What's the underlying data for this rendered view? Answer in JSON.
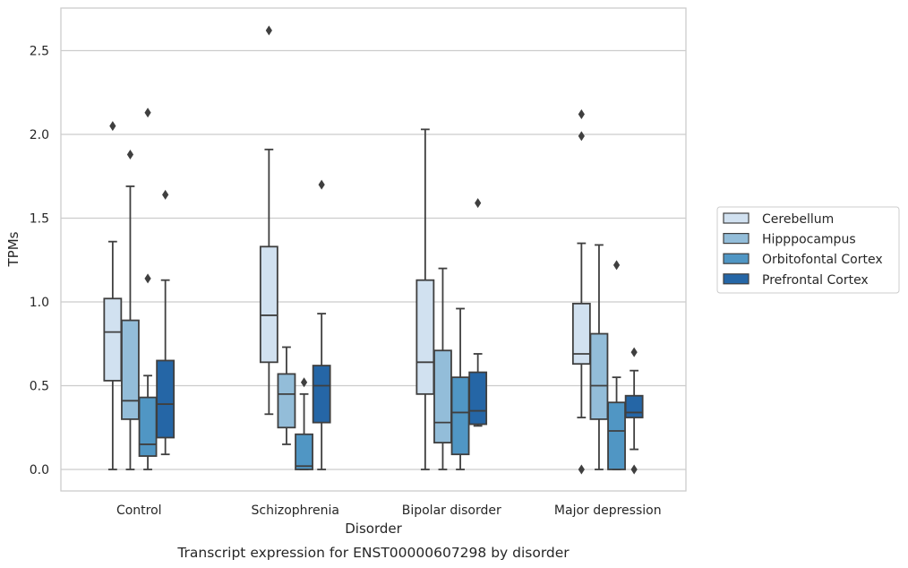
{
  "chart_data": {
    "type": "box",
    "xlabel": "Disorder",
    "ylabel": "TPMs",
    "caption": "Transcript expression for ENST00000607298 by disorder",
    "ylim": [
      -0.13,
      2.77
    ],
    "yticks": [
      "0.0",
      "0.5",
      "1.0",
      "1.5",
      "2.0",
      "2.5"
    ],
    "grid": "horizontal",
    "legend_position": "right",
    "categories": [
      "Control",
      "Schizophrenia",
      "Bipolar disorder",
      "Major depression"
    ],
    "series": [
      {
        "name": "Cerebellum",
        "color": "#d1e1f0",
        "boxes": [
          {
            "whislo": 0.0,
            "q1": 0.53,
            "med": 0.82,
            "q3": 1.02,
            "whishi": 1.36,
            "fliers": [
              2.05
            ]
          },
          {
            "whislo": 0.33,
            "q1": 0.64,
            "med": 0.92,
            "q3": 1.33,
            "whishi": 1.91,
            "fliers": [
              2.62
            ]
          },
          {
            "whislo": 0.0,
            "q1": 0.45,
            "med": 0.64,
            "q3": 1.13,
            "whishi": 2.03,
            "fliers": []
          },
          {
            "whislo": 0.31,
            "q1": 0.63,
            "med": 0.69,
            "q3": 0.99,
            "whishi": 1.35,
            "fliers": [
              0.0,
              1.99,
              2.12
            ]
          }
        ]
      },
      {
        "name": "Hipppocampus",
        "color": "#93bdd9",
        "boxes": [
          {
            "whislo": 0.0,
            "q1": 0.3,
            "med": 0.41,
            "q3": 0.89,
            "whishi": 1.69,
            "fliers": [
              1.88
            ]
          },
          {
            "whislo": 0.15,
            "q1": 0.25,
            "med": 0.45,
            "q3": 0.57,
            "whishi": 0.73,
            "fliers": []
          },
          {
            "whislo": 0.0,
            "q1": 0.16,
            "med": 0.28,
            "q3": 0.71,
            "whishi": 1.2,
            "fliers": []
          },
          {
            "whislo": 0.0,
            "q1": 0.3,
            "med": 0.5,
            "q3": 0.81,
            "whishi": 1.34,
            "fliers": []
          }
        ]
      },
      {
        "name": "Orbitofontal Cortex",
        "color": "#5096c4",
        "boxes": [
          {
            "whislo": 0.0,
            "q1": 0.08,
            "med": 0.15,
            "q3": 0.43,
            "whishi": 0.56,
            "fliers": [
              1.14,
              2.13
            ]
          },
          {
            "whislo": 0.0,
            "q1": 0.0,
            "med": 0.02,
            "q3": 0.21,
            "whishi": 0.45,
            "fliers": [
              0.52
            ]
          },
          {
            "whislo": 0.0,
            "q1": 0.09,
            "med": 0.34,
            "q3": 0.55,
            "whishi": 0.96,
            "fliers": []
          },
          {
            "whislo": 0.0,
            "q1": 0.0,
            "med": 0.23,
            "q3": 0.4,
            "whishi": 0.55,
            "fliers": [
              1.22
            ]
          }
        ]
      },
      {
        "name": "Prefrontal Cortex",
        "color": "#2566a6",
        "boxes": [
          {
            "whislo": 0.09,
            "q1": 0.19,
            "med": 0.39,
            "q3": 0.65,
            "whishi": 1.13,
            "fliers": [
              1.64
            ]
          },
          {
            "whislo": 0.0,
            "q1": 0.28,
            "med": 0.5,
            "q3": 0.62,
            "whishi": 0.93,
            "fliers": [
              1.7
            ]
          },
          {
            "whislo": 0.26,
            "q1": 0.27,
            "med": 0.35,
            "q3": 0.58,
            "whishi": 0.69,
            "fliers": [
              1.59
            ]
          },
          {
            "whislo": 0.12,
            "q1": 0.31,
            "med": 0.34,
            "q3": 0.44,
            "whishi": 0.59,
            "fliers": [
              0.0,
              0.7
            ]
          }
        ]
      }
    ]
  }
}
